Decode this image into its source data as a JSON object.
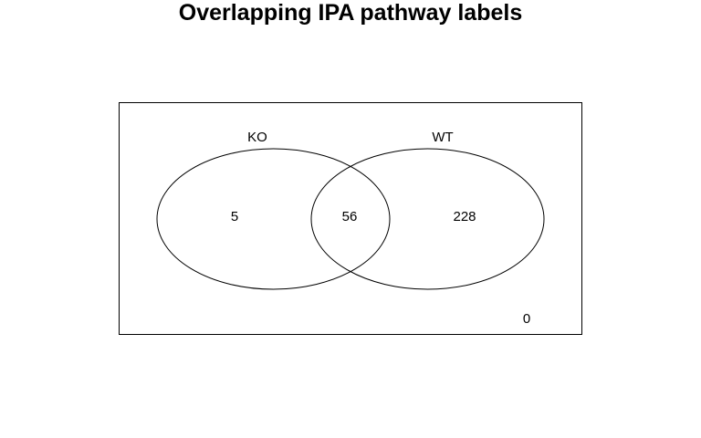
{
  "title": "Overlapping IPA pathway labels",
  "sets": [
    {
      "name": "KO"
    },
    {
      "name": "WT"
    }
  ],
  "counts": {
    "ko_only": "5",
    "both": "56",
    "wt_only": "228",
    "neither": "0"
  },
  "colors": {
    "stroke": "#000000",
    "background": "#ffffff"
  }
}
